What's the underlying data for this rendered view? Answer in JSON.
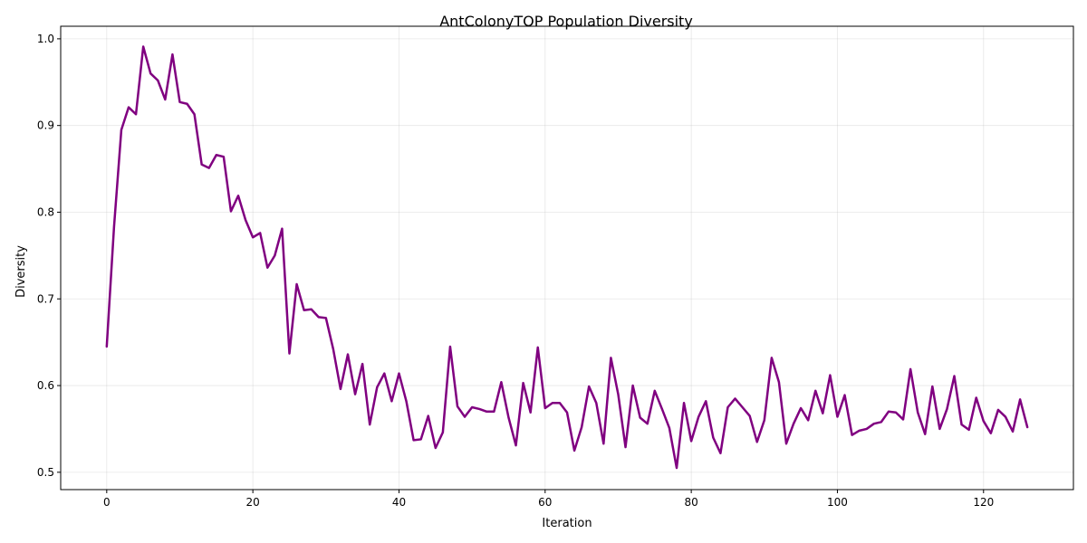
{
  "chart_data": {
    "type": "line",
    "title": "AntColonyTOP Population Diversity",
    "xlabel": "Iteration",
    "ylabel": "Diversity",
    "xlim": [
      -6.3,
      132.3
    ],
    "ylim": [
      0.48,
      1.0145
    ],
    "xticks": [
      0,
      20,
      40,
      60,
      80,
      100,
      120
    ],
    "yticks": [
      0.5,
      0.6,
      0.7,
      0.8,
      0.9,
      1.0
    ],
    "ytick_labels": [
      "0.5",
      "0.6",
      "0.7",
      "0.8",
      "0.9",
      "1.0"
    ],
    "grid": true,
    "line_color": "#800080",
    "series": [
      {
        "x": [
          0,
          1,
          2,
          3,
          4,
          5,
          6,
          7,
          8,
          9,
          10,
          11,
          12,
          13,
          14,
          15,
          16,
          17,
          18,
          19,
          20,
          21,
          22,
          23,
          24,
          25,
          26,
          27,
          28,
          29,
          30,
          31,
          32,
          33,
          34,
          35,
          36,
          37,
          38,
          39,
          40,
          41,
          42,
          43,
          44,
          45,
          46,
          47,
          48,
          49,
          50,
          51,
          52,
          53,
          54,
          55,
          56,
          57,
          58,
          59,
          60,
          61,
          62,
          63,
          64,
          65,
          66,
          67,
          68,
          69,
          70,
          71,
          72,
          73,
          74,
          75,
          76,
          77,
          78,
          79,
          80,
          81,
          82,
          83,
          84,
          85,
          86,
          87,
          88,
          89,
          90,
          91,
          92,
          93,
          94,
          95,
          96,
          97,
          98,
          99,
          100,
          101,
          102,
          103,
          104,
          105,
          106,
          107,
          108,
          109,
          110,
          111,
          112,
          113,
          114,
          115,
          116,
          117,
          118,
          119,
          120,
          121,
          122,
          123,
          124,
          125,
          126
        ],
        "values": [
          0.645,
          0.783,
          0.895,
          0.921,
          0.913,
          0.991,
          0.96,
          0.952,
          0.93,
          0.982,
          0.927,
          0.925,
          0.913,
          0.855,
          0.851,
          0.866,
          0.864,
          0.801,
          0.819,
          0.791,
          0.771,
          0.776,
          0.736,
          0.75,
          0.781,
          0.637,
          0.717,
          0.687,
          0.688,
          0.679,
          0.678,
          0.642,
          0.596,
          0.636,
          0.59,
          0.625,
          0.555,
          0.598,
          0.614,
          0.582,
          0.614,
          0.582,
          0.537,
          0.538,
          0.565,
          0.528,
          0.546,
          0.645,
          0.576,
          0.564,
          0.575,
          0.573,
          0.57,
          0.57,
          0.604,
          0.563,
          0.531,
          0.603,
          0.569,
          0.644,
          0.574,
          0.58,
          0.58,
          0.569,
          0.525,
          0.552,
          0.599,
          0.58,
          0.533,
          0.632,
          0.59,
          0.529,
          0.6,
          0.563,
          0.556,
          0.594,
          0.573,
          0.551,
          0.505,
          0.58,
          0.536,
          0.564,
          0.582,
          0.54,
          0.522,
          0.575,
          0.585,
          0.575,
          0.565,
          0.535,
          0.56,
          0.632,
          0.604,
          0.533,
          0.556,
          0.574,
          0.56,
          0.594,
          0.568,
          0.612,
          0.564,
          0.589,
          0.543,
          0.548,
          0.55,
          0.556,
          0.558,
          0.57,
          0.569,
          0.561,
          0.619,
          0.569,
          0.544,
          0.599,
          0.55,
          0.573,
          0.611,
          0.555,
          0.549,
          0.586,
          0.559,
          0.545,
          0.572,
          0.564,
          0.547,
          0.584,
          0.552
        ]
      }
    ]
  }
}
